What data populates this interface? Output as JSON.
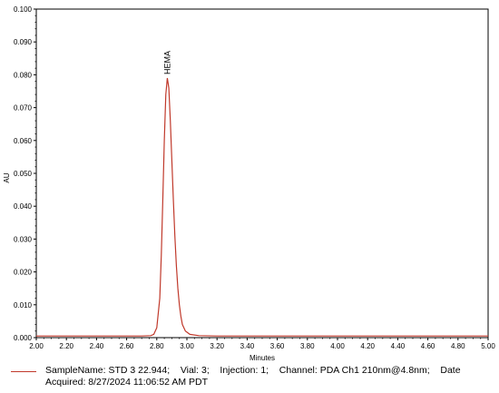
{
  "chart_data": {
    "type": "line",
    "xlabel": "Minutes",
    "ylabel": "AU",
    "xlim": [
      2.0,
      5.0
    ],
    "ylim": [
      0.0,
      0.1
    ],
    "x_ticks": [
      "2.00",
      "2.20",
      "2.40",
      "2.60",
      "2.80",
      "3.00",
      "3.20",
      "3.40",
      "3.60",
      "3.80",
      "4.00",
      "4.20",
      "4.40",
      "4.60",
      "4.80",
      "5.00"
    ],
    "y_ticks": [
      "0.000",
      "0.010",
      "0.020",
      "0.030",
      "0.040",
      "0.050",
      "0.060",
      "0.070",
      "0.080",
      "0.090",
      "0.100"
    ],
    "grid": false,
    "peak_label": "HEMA",
    "series": [
      {
        "name": "SampleName: STD 3 22.944;",
        "color": "#c0392b",
        "points": [
          [
            2.0,
            0.0005
          ],
          [
            2.7,
            0.0005
          ],
          [
            2.76,
            0.0006
          ],
          [
            2.78,
            0.001
          ],
          [
            2.8,
            0.003
          ],
          [
            2.82,
            0.012
          ],
          [
            2.83,
            0.025
          ],
          [
            2.84,
            0.042
          ],
          [
            2.85,
            0.06
          ],
          [
            2.86,
            0.074
          ],
          [
            2.87,
            0.079
          ],
          [
            2.88,
            0.076
          ],
          [
            2.89,
            0.066
          ],
          [
            2.9,
            0.054
          ],
          [
            2.91,
            0.042
          ],
          [
            2.92,
            0.031
          ],
          [
            2.93,
            0.022
          ],
          [
            2.94,
            0.015
          ],
          [
            2.95,
            0.01
          ],
          [
            2.96,
            0.0065
          ],
          [
            2.97,
            0.004
          ],
          [
            2.99,
            0.002
          ],
          [
            3.02,
            0.001
          ],
          [
            3.08,
            0.0006
          ],
          [
            3.2,
            0.0005
          ],
          [
            5.0,
            0.0005
          ]
        ]
      }
    ]
  },
  "legend": {
    "text": "SampleName: STD 3 22.944;    Vial: 3;    Injection: 1;    Channel: PDA Ch1 210nm@4.8nm;    Date Acquired: 8/27/2024 11:06:52 AM PDT"
  }
}
